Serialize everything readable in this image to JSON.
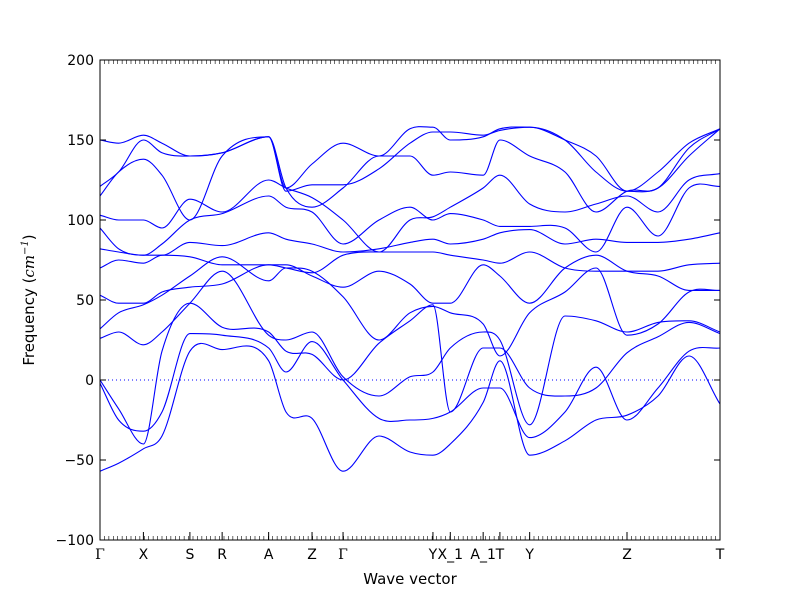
{
  "chart_data": {
    "type": "line",
    "xlabel": "Wave vector",
    "ylabel": {
      "prefix": "Frequency (",
      "unit_base": "cm",
      "unit_exp": "−1",
      "suffix": ")"
    },
    "ylim": [
      -100,
      200
    ],
    "yticks": [
      -100,
      -50,
      0,
      50,
      100,
      150,
      200
    ],
    "grid": false,
    "zero_line": true,
    "colors": {
      "line": "#0000ff",
      "zero_line": "#0000ff"
    },
    "high_symmetry_points": [
      {
        "label": "Γ",
        "x": 0.0
      },
      {
        "label": "X",
        "x": 0.07
      },
      {
        "label": "S",
        "x": 0.145
      },
      {
        "label": "R",
        "x": 0.197
      },
      {
        "label": "A",
        "x": 0.272
      },
      {
        "label": "Z",
        "x": 0.342
      },
      {
        "label": "Γ",
        "x": 0.392
      },
      {
        "label": "Y",
        "x": 0.537
      },
      {
        "label": "X_1",
        "x": 0.565
      },
      {
        "label": "A_1",
        "x": 0.618
      },
      {
        "label": "T",
        "x": 0.645
      },
      {
        "label": "Y",
        "x": 0.693
      },
      {
        "label": "Z",
        "x": 0.85
      },
      {
        "label": "T",
        "x": 1.0
      }
    ],
    "bands": [
      {
        "x": [
          0,
          0.03,
          0.07,
          0.1,
          0.145,
          0.197,
          0.272,
          0.3,
          0.342,
          0.392,
          0.45,
          0.5,
          0.537,
          0.565,
          0.618,
          0.645,
          0.693,
          0.75,
          0.8,
          0.85,
          0.9,
          0.95,
          1.0
        ],
        "y": [
          -57,
          -52,
          -43,
          -35,
          18,
          19,
          12,
          -20,
          -24,
          -57,
          -35,
          -45,
          -47,
          -40,
          -14,
          12,
          -47,
          -38,
          -25,
          -22,
          -10,
          15,
          -15
        ]
      },
      {
        "x": [
          0,
          0.03,
          0.07,
          0.1,
          0.145,
          0.197,
          0.272,
          0.3,
          0.342,
          0.392,
          0.45,
          0.5,
          0.537,
          0.565,
          0.618,
          0.645,
          0.693,
          0.75,
          0.8,
          0.85,
          0.9,
          0.95,
          1.0
        ],
        "y": [
          -2,
          -25,
          -32,
          -20,
          29,
          28,
          20,
          5,
          24,
          0,
          -24,
          -25,
          -24,
          -20,
          -5,
          -5,
          -36,
          -20,
          8,
          -25,
          -5,
          18,
          20
        ]
      },
      {
        "x": [
          0,
          0.03,
          0.07,
          0.1,
          0.145,
          0.197,
          0.272,
          0.3,
          0.342,
          0.392,
          0.45,
          0.5,
          0.537,
          0.565,
          0.618,
          0.645,
          0.693,
          0.75,
          0.8,
          0.85,
          0.9,
          0.95,
          1.0
        ],
        "y": [
          0,
          -18,
          -40,
          18,
          48,
          33,
          30,
          18,
          16,
          0,
          23,
          37,
          47,
          -20,
          20,
          20,
          -5,
          -10,
          -5,
          17,
          27,
          36,
          29
        ]
      },
      {
        "x": [
          0,
          0.03,
          0.07,
          0.1,
          0.145,
          0.197,
          0.272,
          0.3,
          0.342,
          0.392,
          0.45,
          0.5,
          0.537,
          0.565,
          0.618,
          0.645,
          0.693,
          0.75,
          0.8,
          0.85,
          0.9,
          0.95,
          1.0
        ],
        "y": [
          26,
          30,
          22,
          30,
          48,
          68,
          28,
          25,
          30,
          2,
          -10,
          2,
          5,
          20,
          30,
          25,
          -28,
          40,
          37,
          30,
          36,
          37,
          30
        ]
      },
      {
        "x": [
          0,
          0.03,
          0.07,
          0.1,
          0.145,
          0.197,
          0.272,
          0.3,
          0.342,
          0.392,
          0.45,
          0.5,
          0.537,
          0.565,
          0.618,
          0.645,
          0.693,
          0.75,
          0.8,
          0.85,
          0.9,
          0.95,
          1.0
        ],
        "y": [
          32,
          42,
          47,
          53,
          65,
          77,
          62,
          70,
          68,
          52,
          25,
          42,
          46,
          42,
          35,
          15,
          42,
          55,
          70,
          28,
          35,
          55,
          56
        ]
      },
      {
        "x": [
          0,
          0.03,
          0.07,
          0.1,
          0.145,
          0.197,
          0.272,
          0.3,
          0.342,
          0.392,
          0.45,
          0.5,
          0.537,
          0.565,
          0.618,
          0.645,
          0.693,
          0.75,
          0.8,
          0.85,
          0.9,
          0.95,
          1.0
        ],
        "y": [
          53,
          48,
          48,
          55,
          58,
          60,
          72,
          72,
          65,
          58,
          68,
          60,
          48,
          48,
          72,
          65,
          48,
          70,
          78,
          68,
          65,
          56,
          56
        ]
      },
      {
        "x": [
          0,
          0.03,
          0.07,
          0.1,
          0.145,
          0.197,
          0.272,
          0.3,
          0.342,
          0.392,
          0.45,
          0.5,
          0.537,
          0.565,
          0.618,
          0.645,
          0.693,
          0.75,
          0.8,
          0.85,
          0.9,
          0.95,
          1.0
        ],
        "y": [
          70,
          75,
          73,
          78,
          77,
          72,
          72,
          70,
          67,
          78,
          80,
          80,
          80,
          78,
          75,
          73,
          80,
          70,
          68,
          68,
          68,
          72,
          73
        ]
      },
      {
        "x": [
          0,
          0.03,
          0.07,
          0.1,
          0.145,
          0.197,
          0.272,
          0.3,
          0.342,
          0.392,
          0.45,
          0.5,
          0.537,
          0.565,
          0.618,
          0.645,
          0.693,
          0.75,
          0.8,
          0.85,
          0.9,
          0.95,
          1.0
        ],
        "y": [
          82,
          80,
          78,
          78,
          86,
          84,
          92,
          88,
          85,
          80,
          82,
          86,
          88,
          85,
          88,
          92,
          94,
          85,
          88,
          86,
          86,
          88,
          92
        ]
      },
      {
        "x": [
          0,
          0.03,
          0.07,
          0.1,
          0.145,
          0.197,
          0.272,
          0.3,
          0.342,
          0.392,
          0.45,
          0.5,
          0.537,
          0.565,
          0.618,
          0.645,
          0.693,
          0.75,
          0.8,
          0.85,
          0.9,
          0.95,
          1.0
        ],
        "y": [
          95,
          82,
          78,
          85,
          100,
          104,
          115,
          108,
          105,
          85,
          100,
          108,
          100,
          104,
          100,
          96,
          96,
          95,
          80,
          108,
          90,
          120,
          121
        ]
      },
      {
        "x": [
          0,
          0.03,
          0.07,
          0.1,
          0.145,
          0.197,
          0.272,
          0.3,
          0.342,
          0.392,
          0.45,
          0.5,
          0.537,
          0.565,
          0.618,
          0.645,
          0.693,
          0.75,
          0.8,
          0.85,
          0.9,
          0.95,
          1.0
        ],
        "y": [
          103,
          100,
          100,
          95,
          113,
          105,
          125,
          120,
          114,
          100,
          80,
          100,
          102,
          108,
          120,
          128,
          110,
          105,
          110,
          115,
          105,
          125,
          129
        ]
      },
      {
        "x": [
          0,
          0.03,
          0.07,
          0.1,
          0.145,
          0.197,
          0.272,
          0.3,
          0.342,
          0.392,
          0.45,
          0.5,
          0.537,
          0.565,
          0.618,
          0.645,
          0.693,
          0.75,
          0.8,
          0.85,
          0.9,
          0.95,
          1.0
        ],
        "y": [
          115,
          130,
          138,
          128,
          100,
          140,
          152,
          120,
          108,
          120,
          140,
          140,
          128,
          130,
          128,
          150,
          140,
          130,
          105,
          118,
          120,
          145,
          157
        ]
      },
      {
        "x": [
          0,
          0.03,
          0.07,
          0.1,
          0.145,
          0.197,
          0.272,
          0.3,
          0.342,
          0.392,
          0.45,
          0.5,
          0.537,
          0.565,
          0.618,
          0.645,
          0.693,
          0.75,
          0.8,
          0.85,
          0.9,
          0.95,
          1.0
        ],
        "y": [
          121,
          130,
          150,
          142,
          140,
          142,
          152,
          120,
          135,
          148,
          140,
          157,
          158,
          150,
          152,
          157,
          158,
          150,
          140,
          118,
          130,
          148,
          157
        ]
      },
      {
        "x": [
          0,
          0.03,
          0.07,
          0.1,
          0.145,
          0.197,
          0.272,
          0.3,
          0.342,
          0.392,
          0.45,
          0.5,
          0.537,
          0.565,
          0.618,
          0.645,
          0.693,
          0.75,
          0.8,
          0.85,
          0.9,
          0.95,
          1.0
        ],
        "y": [
          150,
          148,
          153,
          148,
          140,
          142,
          152,
          118,
          122,
          122,
          132,
          148,
          155,
          155,
          153,
          156,
          158,
          150,
          130,
          118,
          120,
          140,
          157
        ]
      }
    ]
  }
}
